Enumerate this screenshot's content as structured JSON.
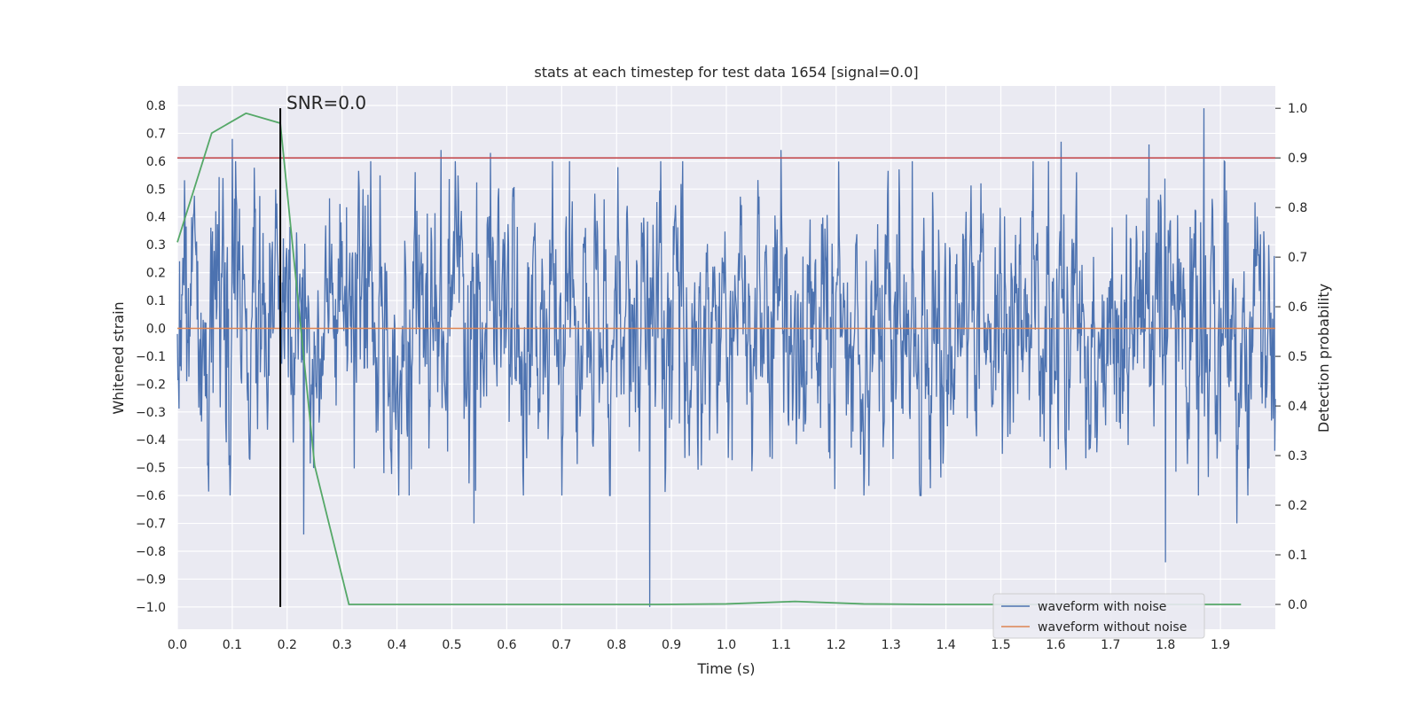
{
  "chart_data": {
    "type": "line",
    "title": "stats at each timestep for test data 1654 [signal=0.0]",
    "xlabel": "Time (s)",
    "ylabel_left": "Whitened strain",
    "ylabel_right": "Detection probability",
    "xlim": [
      0.0,
      2.0
    ],
    "ylim_left": [
      -1.08,
      0.87
    ],
    "ylim_right": [
      -0.05,
      1.045
    ],
    "x_ticks": [
      "0.0",
      "0.1",
      "0.2",
      "0.3",
      "0.4",
      "0.5",
      "0.6",
      "0.7",
      "0.8",
      "0.9",
      "1.0",
      "1.1",
      "1.2",
      "1.3",
      "1.4",
      "1.5",
      "1.6",
      "1.7",
      "1.8",
      "1.9"
    ],
    "y_left_ticks": [
      "0.8",
      "0.7",
      "0.6",
      "0.5",
      "0.4",
      "0.3",
      "0.2",
      "0.1",
      "0.0",
      "−0.1",
      "−0.2",
      "−0.3",
      "−0.4",
      "−0.5",
      "−0.6",
      "−0.7",
      "−0.8",
      "−0.9",
      "−1.0"
    ],
    "y_right_ticks": [
      "1.0",
      "0.9",
      "0.8",
      "0.7",
      "0.6",
      "0.5",
      "0.4",
      "0.3",
      "0.2",
      "0.1",
      "0.0"
    ],
    "grid": true,
    "legend_position": "bottom-right",
    "series": [
      {
        "name": "waveform with noise",
        "axis": "left",
        "color": "#4c72b0",
        "description": "noisy whitened strain, approx. 2048 samples, mostly within [-0.5, 0.5]",
        "peaks": [
          {
            "x": 0.1,
            "y": 0.68
          },
          {
            "x": 0.48,
            "y": 0.64
          },
          {
            "x": 0.57,
            "y": 0.63
          },
          {
            "x": 1.1,
            "y": 0.64
          },
          {
            "x": 1.61,
            "y": 0.67
          },
          {
            "x": 1.77,
            "y": 0.66
          },
          {
            "x": 1.87,
            "y": 0.79
          },
          {
            "x": 0.86,
            "y": -1.0
          },
          {
            "x": 0.23,
            "y": -0.74
          },
          {
            "x": 0.54,
            "y": -0.7
          },
          {
            "x": 1.8,
            "y": -0.84
          },
          {
            "x": 1.93,
            "y": -0.7
          }
        ]
      },
      {
        "name": "waveform without noise",
        "axis": "left",
        "color": "#dd8452",
        "x": [
          0.0,
          2.0
        ],
        "y": [
          0.0,
          0.0
        ]
      },
      {
        "name": "detection probability",
        "axis": "right",
        "color": "#55a868",
        "x": [
          0.0,
          0.0625,
          0.125,
          0.1875,
          0.25,
          0.3125,
          0.375,
          0.5,
          0.625,
          0.75,
          0.875,
          1.0,
          1.125,
          1.25,
          1.375,
          1.5,
          1.625,
          1.75,
          1.875,
          1.9375
        ],
        "y": [
          0.73,
          0.95,
          0.99,
          0.97,
          0.28,
          0.0,
          0.0,
          0.0,
          0.0,
          0.0,
          0.0,
          0.001,
          0.006,
          0.001,
          0.0,
          0.0,
          0.0,
          0.0,
          0.0,
          0.0
        ]
      }
    ],
    "threshold": {
      "axis": "right",
      "value": 0.9,
      "color": "#c44e52"
    },
    "marker_line": {
      "x": 0.1875,
      "y_from": -1.0,
      "y_to": 0.79,
      "color": "#000000"
    },
    "annotation": {
      "text": "SNR=0.0",
      "x": 0.2,
      "y": 0.8
    }
  }
}
